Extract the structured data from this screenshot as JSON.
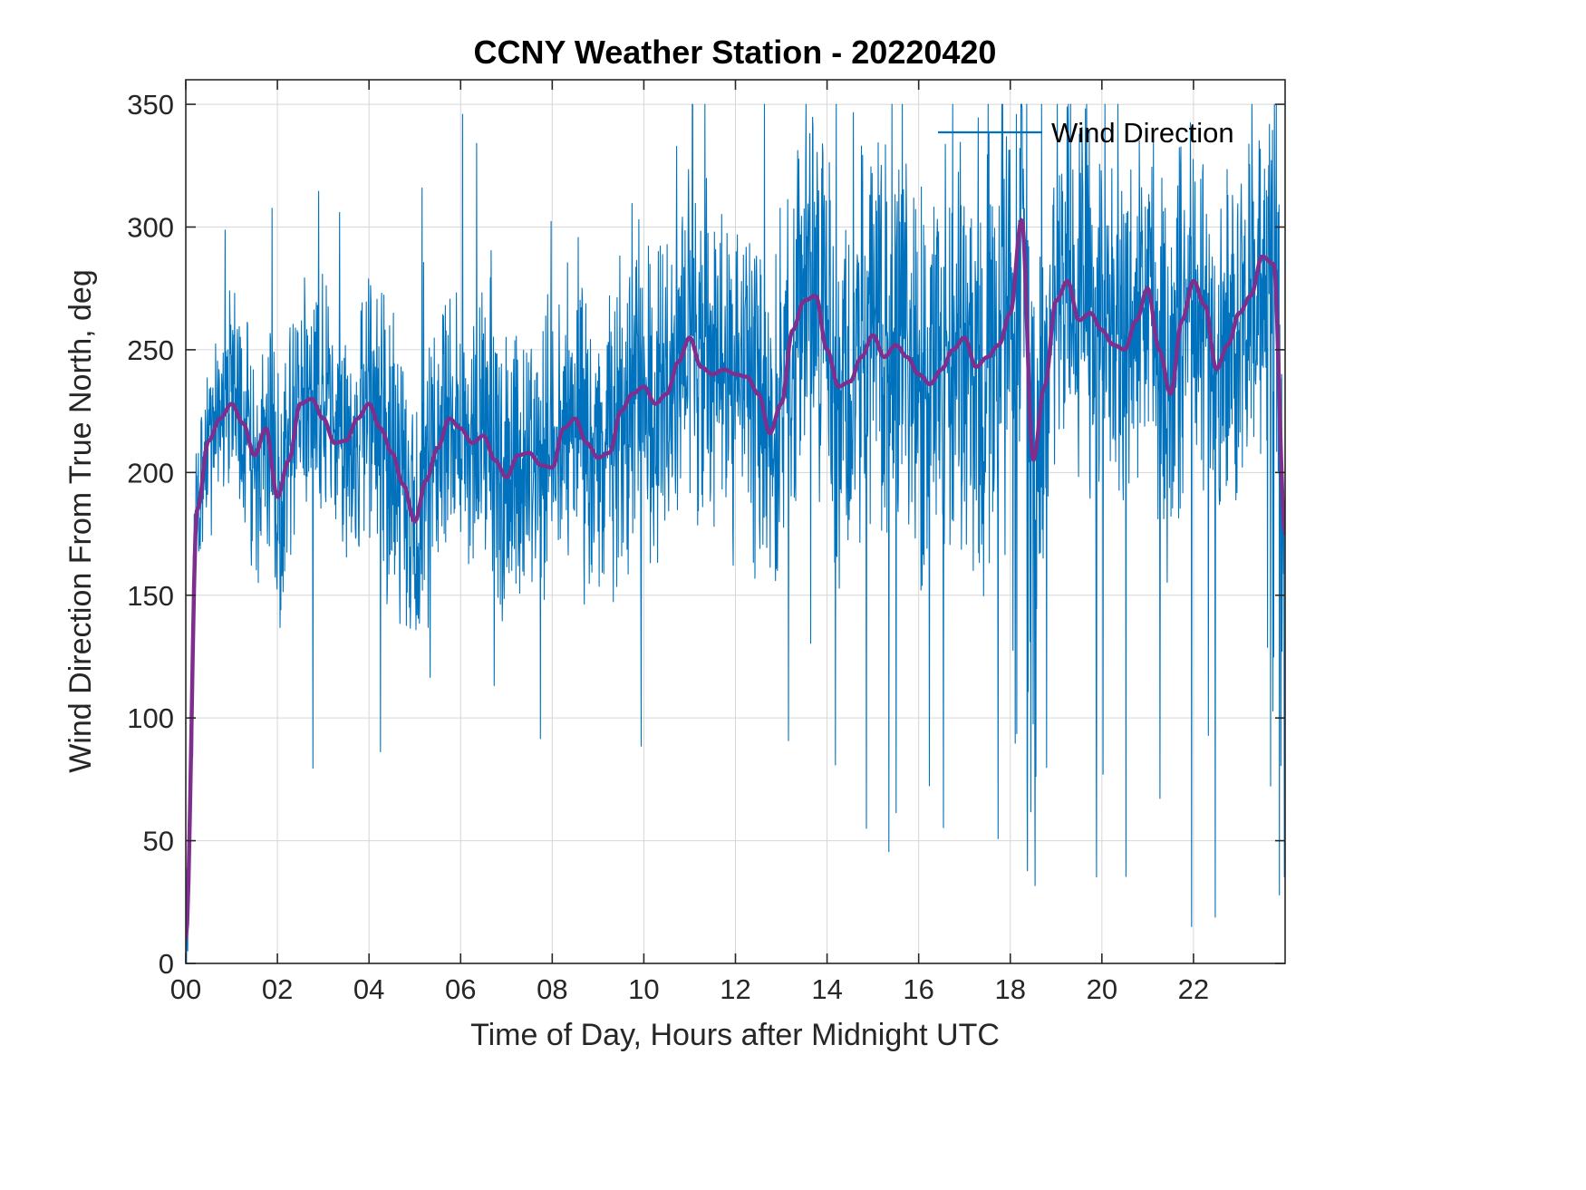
{
  "title": "CCNY Weather Station - 20220420",
  "axes": {
    "xlabel": "Time of Day, Hours after Midnight UTC",
    "ylabel": "Wind Direction From True North, deg"
  },
  "legend": {
    "label": "Wind Direction"
  },
  "colors": {
    "raw_series": "#0072BD",
    "smooth_series": "#7E2F8E",
    "grid": "#d6d6d6",
    "axis": "#262626",
    "background": "#ffffff"
  },
  "chart_data": {
    "type": "line",
    "title": "CCNY Weather Station - 20220420",
    "xlabel": "Time of Day, Hours after Midnight UTC",
    "ylabel": "Wind Direction From True North, deg",
    "xlim": [
      0,
      24
    ],
    "ylim": [
      0,
      360
    ],
    "x_ticks": [
      0,
      2,
      4,
      6,
      8,
      10,
      12,
      14,
      16,
      18,
      20,
      22
    ],
    "x_tick_labels": [
      "00",
      "02",
      "04",
      "06",
      "08",
      "10",
      "12",
      "14",
      "16",
      "18",
      "20",
      "22"
    ],
    "y_ticks": [
      0,
      50,
      100,
      150,
      200,
      250,
      300,
      350
    ],
    "y_tick_labels": [
      "0",
      "50",
      "100",
      "150",
      "200",
      "250",
      "300",
      "350"
    ],
    "grid": true,
    "legend_position": "top-right-inside",
    "series": [
      {
        "name": "Wind Direction",
        "color": "#0072BD",
        "style": "thin noisy high-frequency 1-minute wind direction trace; scatter band widens through the day; deep dropouts toward 0 deg near hours 18.2-18.6 and after 23.5; maximum spike about 348 deg near hour 17.3",
        "in_legend": true
      },
      {
        "name": "Running-mean wind direction (unlabeled smooth overlay)",
        "color": "#7E2F8E",
        "style": "thick smooth running-mean curve over the raw trace",
        "in_legend": false
      }
    ],
    "smoothed_x_step_hours": 0.25,
    "smoothed_mean": [
      10,
      185,
      213,
      222,
      228,
      220,
      207,
      218,
      190,
      205,
      228,
      230,
      222,
      212,
      213,
      222,
      228,
      218,
      208,
      195,
      180,
      197,
      210,
      222,
      218,
      212,
      215,
      205,
      198,
      207,
      208,
      203,
      202,
      218,
      222,
      212,
      206,
      208,
      225,
      232,
      235,
      228,
      232,
      245,
      255,
      243,
      240,
      242,
      240,
      239,
      232,
      216,
      228,
      258,
      270,
      272,
      250,
      235,
      237,
      247,
      256,
      247,
      252,
      247,
      240,
      236,
      242,
      250,
      255,
      243,
      247,
      252,
      265,
      303,
      205,
      235,
      270,
      278,
      262,
      265,
      258,
      252,
      250,
      262,
      275,
      250,
      232,
      262,
      278,
      268,
      242,
      252,
      265,
      272,
      288,
      285,
      175
    ],
    "noise_sigma_by_hour": [
      30,
      35,
      40,
      40,
      45,
      45,
      45,
      45,
      45,
      48,
      50,
      52,
      55,
      58,
      62,
      65,
      68,
      70,
      72,
      60,
      58,
      60,
      58,
      60,
      70
    ]
  }
}
